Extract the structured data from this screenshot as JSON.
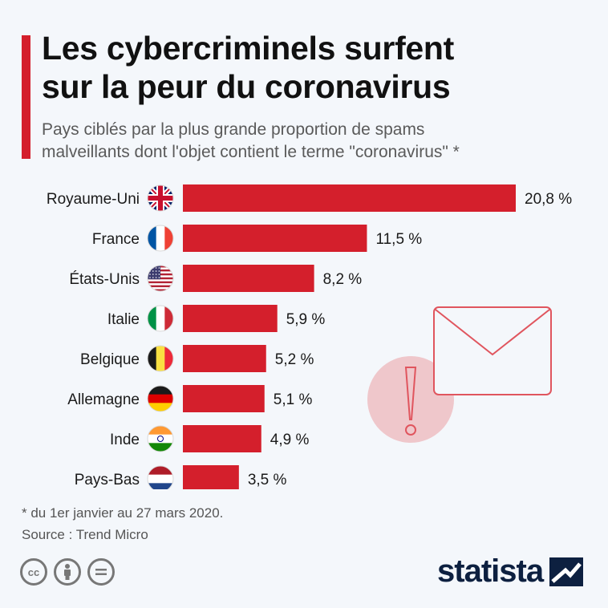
{
  "header": {
    "title_line1": "Les cybercriminels surfent",
    "title_line2": "sur la peur du coronavirus",
    "subtitle_line1": "Pays ciblés par la plus grande proportion de spams",
    "subtitle_line2": "malveillants dont l'objet contient le terme \"coronavirus\" *"
  },
  "chart_data": {
    "type": "bar",
    "orientation": "horizontal",
    "categories": [
      "Royaume-Uni",
      "France",
      "États-Unis",
      "Italie",
      "Belgique",
      "Allemagne",
      "Inde",
      "Pays-Bas"
    ],
    "values": [
      20.8,
      11.5,
      8.2,
      5.9,
      5.2,
      5.1,
      4.9,
      3.5
    ],
    "value_labels": [
      "20,8 %",
      "11,5 %",
      "8,2 %",
      "5,9 %",
      "5,2 %",
      "5,1 %",
      "4,9 %",
      "3,5 %"
    ],
    "flags": [
      "uk-flag-icon",
      "france-flag-icon",
      "usa-flag-icon",
      "italy-flag-icon",
      "belgium-flag-icon",
      "germany-flag-icon",
      "india-flag-icon",
      "netherlands-flag-icon"
    ],
    "bar_color": "#d41f2c",
    "xlim": [
      0,
      20.8
    ],
    "grid": false
  },
  "footer": {
    "note": "* du 1er janvier au 27 mars 2020.",
    "source": "Source : Trend Micro",
    "brand": "statista"
  },
  "colors": {
    "accent": "#d41f2c",
    "background": "#f4f7fb",
    "brand": "#0d2040"
  },
  "icons": {
    "decoration": [
      "envelope-icon",
      "warning-circle-icon"
    ],
    "license": [
      "cc-icon",
      "by-icon",
      "nd-icon"
    ]
  }
}
